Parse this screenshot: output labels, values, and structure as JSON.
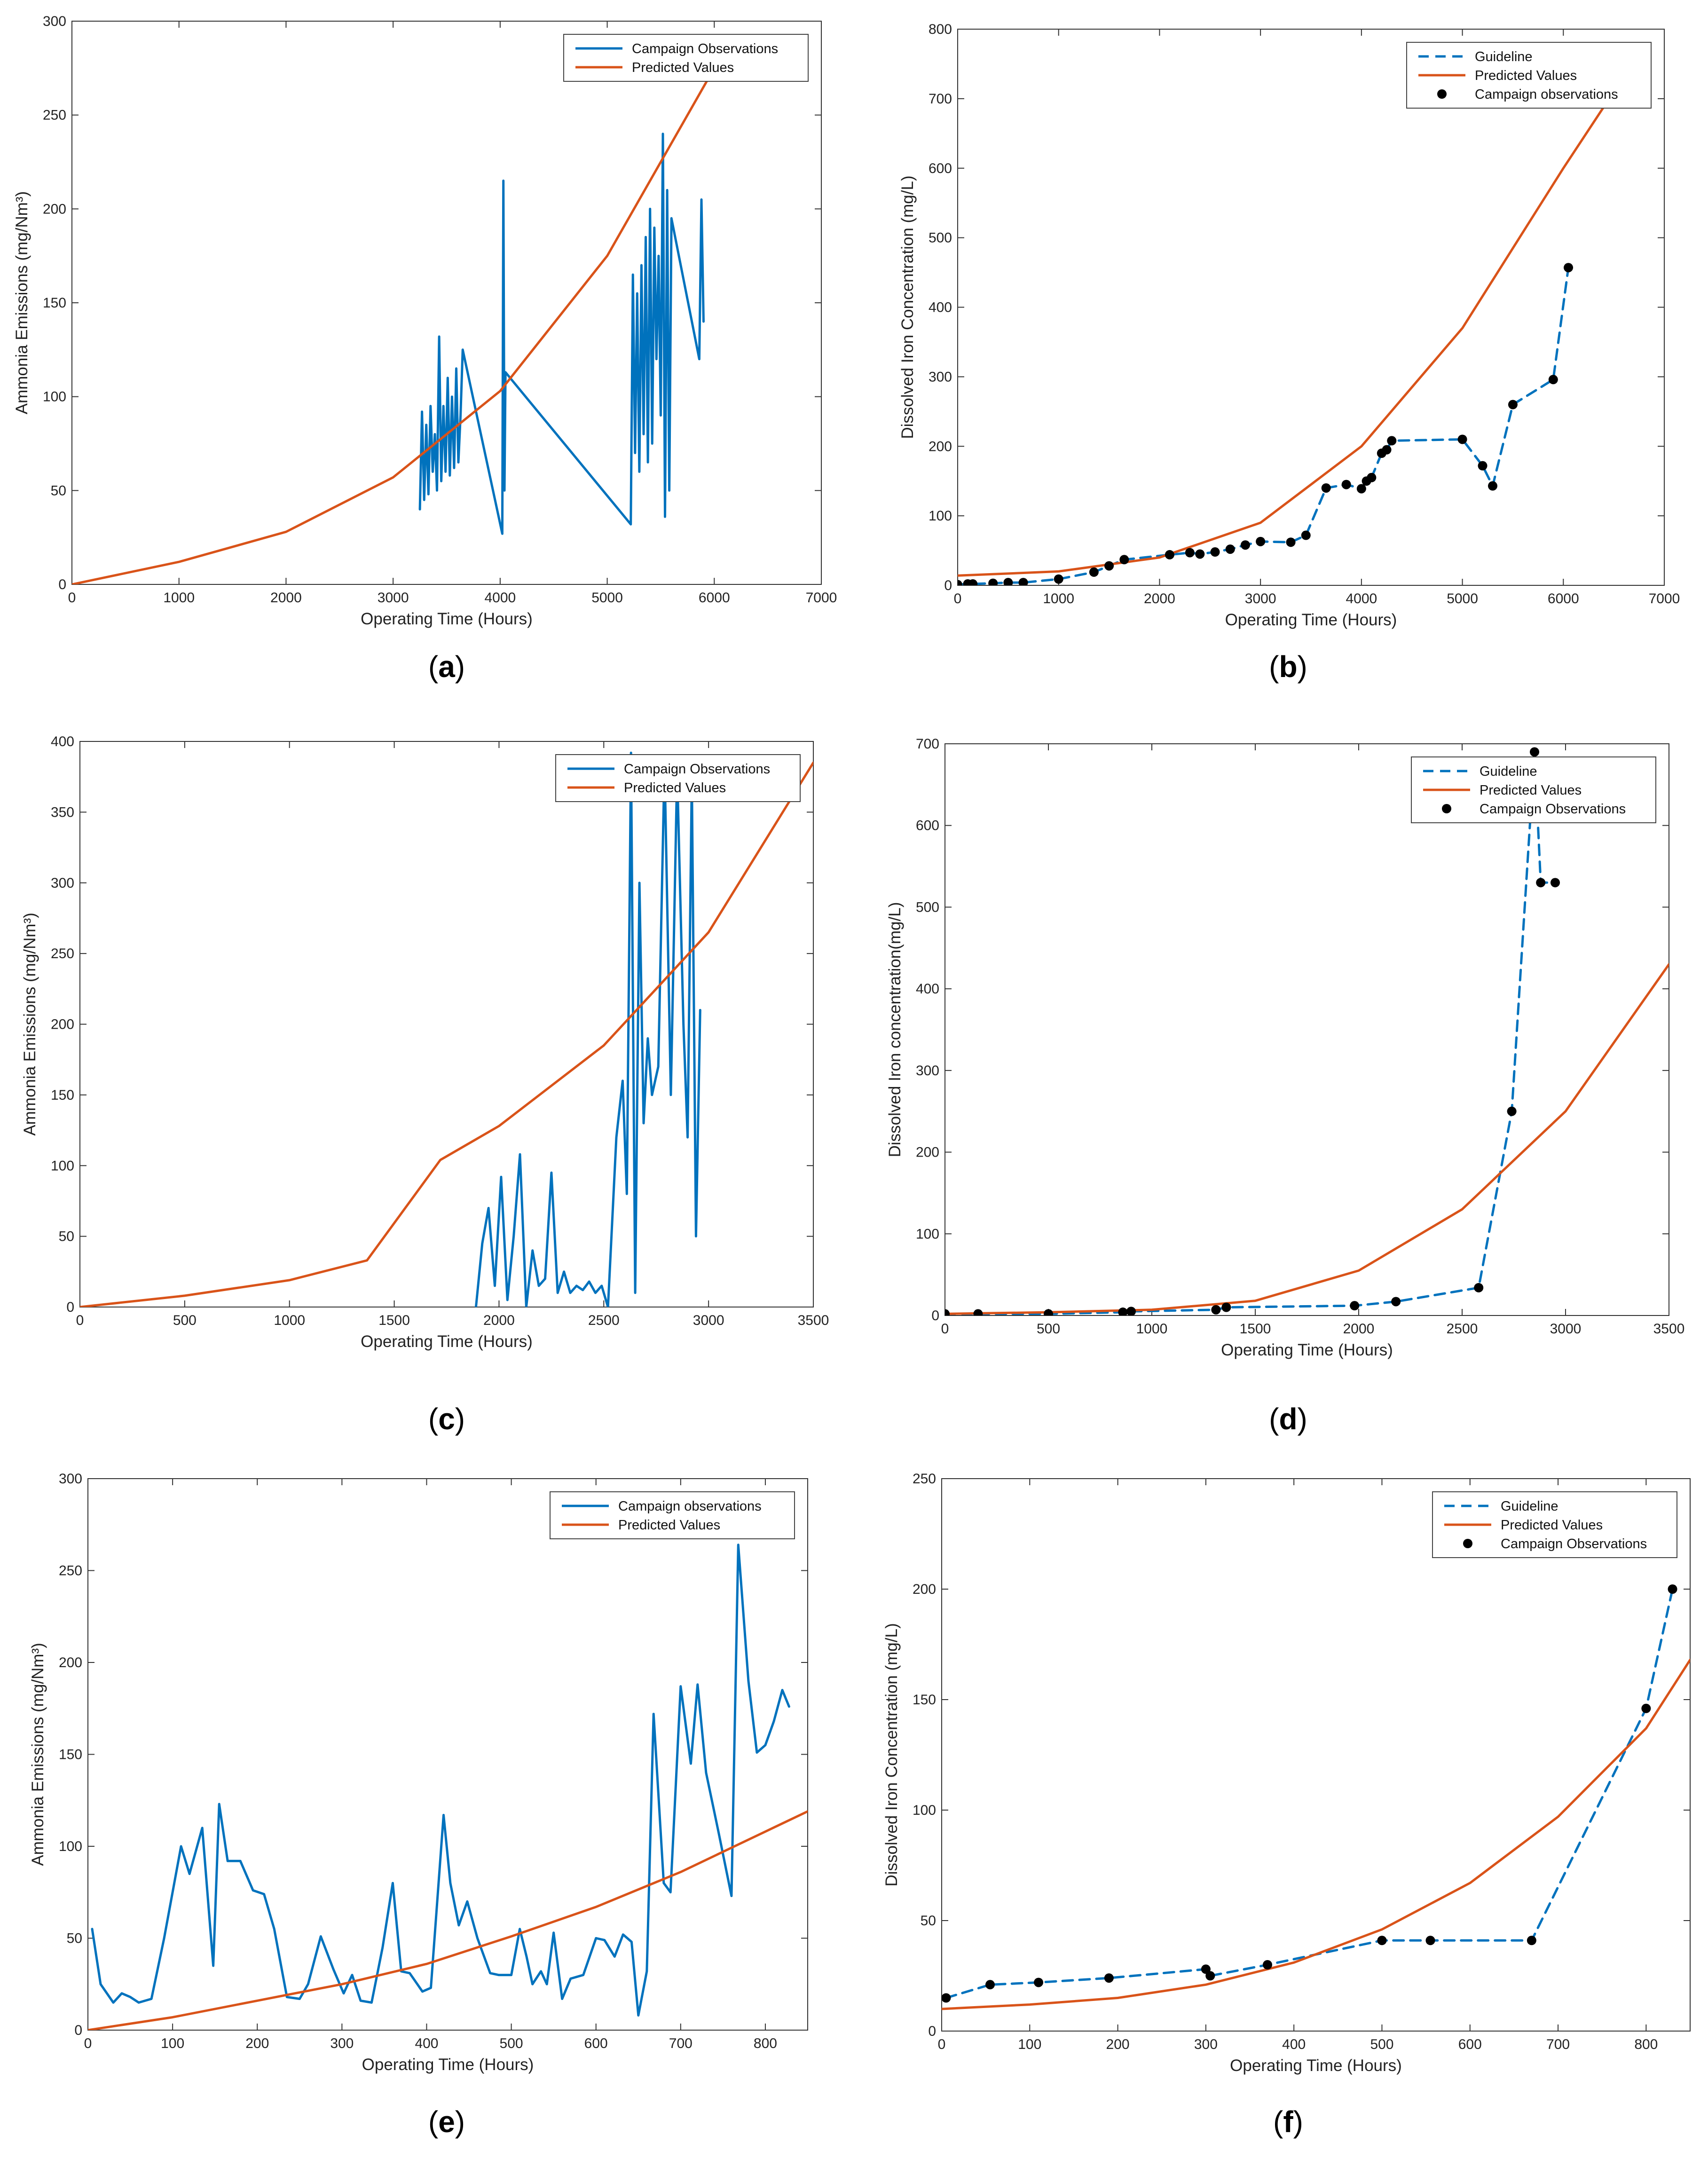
{
  "colors": {
    "observation": "#0072BD",
    "predicted": "#D95319",
    "marker": "#000000",
    "frame": "#333333"
  },
  "chart_data": [
    {
      "id": "a",
      "caption": "a",
      "type": "line",
      "xlabel": "Operating Time (Hours)",
      "ylabel": "Ammonia Emissions (mg/Nm³)",
      "xlim": [
        0,
        7000
      ],
      "ylim": [
        0,
        300
      ],
      "xticks": [
        0,
        1000,
        2000,
        3000,
        4000,
        5000,
        6000,
        7000
      ],
      "yticks": [
        0,
        50,
        100,
        150,
        200,
        250,
        300
      ],
      "legend_position": "top-right",
      "series": [
        {
          "name": "Campaign Observations",
          "style": "solid",
          "color": "#0072BD",
          "x": [
            3250,
            3270,
            3290,
            3310,
            3330,
            3350,
            3370,
            3390,
            3410,
            3430,
            3450,
            3470,
            3490,
            3510,
            3530,
            3550,
            3570,
            3590,
            3610,
            3630,
            3650,
            4020,
            4030,
            4040,
            4050,
            5220,
            5240,
            5260,
            5280,
            5300,
            5320,
            5340,
            5360,
            5380,
            5400,
            5420,
            5440,
            5460,
            5480,
            5500,
            5520,
            5540,
            5560,
            5580,
            5600,
            5860,
            5880,
            5900
          ],
          "y": [
            40,
            92,
            45,
            85,
            48,
            95,
            60,
            80,
            50,
            132,
            55,
            95,
            60,
            110,
            58,
            100,
            62,
            115,
            65,
            90,
            125,
            27,
            215,
            50,
            113,
            32,
            165,
            70,
            155,
            60,
            170,
            80,
            185,
            65,
            200,
            75,
            190,
            120,
            175,
            90,
            240,
            36,
            210,
            50,
            195,
            120,
            205,
            140
          ]
        },
        {
          "name": "Predicted Values",
          "style": "solid",
          "color": "#D95319",
          "x": [
            0,
            1000,
            2000,
            3000,
            4000,
            5000,
            6000
          ],
          "y": [
            0,
            12,
            28,
            57,
            103,
            175,
            275
          ]
        }
      ]
    },
    {
      "id": "b",
      "caption": "b",
      "type": "line",
      "xlabel": "Operating Time (Hours)",
      "ylabel": "Dissolved Iron Concentration (mg/L)",
      "xlim": [
        0,
        7000
      ],
      "ylim": [
        0,
        800
      ],
      "xticks": [
        0,
        1000,
        2000,
        3000,
        4000,
        5000,
        6000,
        7000
      ],
      "yticks": [
        0,
        100,
        200,
        300,
        400,
        500,
        600,
        700,
        800
      ],
      "legend_position": "top-right",
      "series": [
        {
          "name": "Guideline",
          "style": "dashed",
          "color": "#0072BD",
          "x": [
            0,
            100,
            150,
            350,
            500,
            650,
            1000,
            1350,
            1500,
            1650,
            2100,
            2300,
            2400,
            2550,
            2700,
            2850,
            3000,
            3300,
            3450,
            3650,
            3850,
            4000,
            4050,
            4100,
            4200,
            4250,
            4300,
            5000,
            5200,
            5300,
            5500,
            5900,
            6050
          ],
          "y": [
            1,
            2,
            2,
            3,
            4,
            4,
            9,
            19,
            28,
            37,
            44,
            47,
            45,
            48,
            52,
            58,
            63,
            62,
            72,
            140,
            145,
            139,
            150,
            155,
            190,
            195,
            208,
            210,
            172,
            143,
            260,
            296,
            457
          ]
        },
        {
          "name": "Predicted Values",
          "style": "solid",
          "color": "#D95319",
          "x": [
            0,
            1000,
            2000,
            3000,
            4000,
            5000,
            6000,
            6500
          ],
          "y": [
            14,
            20,
            40,
            90,
            200,
            370,
            600,
            710
          ]
        },
        {
          "name": "Campaign observations",
          "style": "markers",
          "color": "#000000",
          "x": [
            0,
            100,
            150,
            350,
            500,
            650,
            1000,
            1350,
            1500,
            1650,
            2100,
            2300,
            2400,
            2550,
            2700,
            2850,
            3000,
            3300,
            3450,
            3650,
            3850,
            4000,
            4050,
            4100,
            4200,
            4250,
            4300,
            5000,
            5200,
            5300,
            5500,
            5900,
            6050
          ],
          "y": [
            1,
            2,
            2,
            3,
            4,
            4,
            9,
            19,
            28,
            37,
            44,
            47,
            45,
            48,
            52,
            58,
            63,
            62,
            72,
            140,
            145,
            139,
            150,
            155,
            190,
            195,
            208,
            210,
            172,
            143,
            260,
            296,
            457
          ]
        }
      ]
    },
    {
      "id": "c",
      "caption": "c",
      "type": "line",
      "xlabel": "Operating Time (Hours)",
      "ylabel": "Ammonia Emissions (mg/Nm³)",
      "xlim": [
        0,
        3500
      ],
      "ylim": [
        0,
        400
      ],
      "xticks": [
        0,
        500,
        1000,
        1500,
        2000,
        2500,
        3000,
        3500
      ],
      "yticks": [
        0,
        50,
        100,
        150,
        200,
        250,
        300,
        350,
        400
      ],
      "legend_position": "top-right",
      "series": [
        {
          "name": "Campaign Observations",
          "style": "solid",
          "color": "#0072BD",
          "x": [
            1890,
            1920,
            1950,
            1980,
            2010,
            2040,
            2070,
            2100,
            2130,
            2160,
            2190,
            2220,
            2250,
            2280,
            2310,
            2340,
            2370,
            2400,
            2430,
            2460,
            2490,
            2520,
            2560,
            2590,
            2610,
            2630,
            2650,
            2670,
            2690,
            2710,
            2730,
            2760,
            2790,
            2820,
            2850,
            2880,
            2900,
            2920,
            2940,
            2960
          ],
          "y": [
            0,
            45,
            70,
            15,
            92,
            5,
            50,
            108,
            0,
            40,
            15,
            20,
            95,
            10,
            25,
            10,
            15,
            12,
            18,
            10,
            15,
            0,
            120,
            160,
            80,
            392,
            10,
            300,
            130,
            190,
            150,
            170,
            385,
            150,
            380,
            200,
            120,
            375,
            50,
            210
          ]
        },
        {
          "name": "Predicted Values",
          "style": "solid",
          "color": "#D95319",
          "x": [
            0,
            500,
            1000,
            1370,
            1720,
            2000,
            2500,
            3000,
            3500
          ],
          "y": [
            0,
            8,
            19,
            33,
            104,
            128,
            185,
            265,
            385
          ]
        }
      ]
    },
    {
      "id": "d",
      "caption": "d",
      "type": "line",
      "xlabel": "Operating Time (Hours)",
      "ylabel": "Dissolved Iron concentration(mg/L)",
      "xlim": [
        0,
        3500
      ],
      "ylim": [
        0,
        700
      ],
      "xticks": [
        0,
        500,
        1000,
        1500,
        2000,
        2500,
        3000,
        3500
      ],
      "yticks": [
        0,
        100,
        200,
        300,
        400,
        500,
        600,
        700
      ],
      "legend_position": "top-right",
      "series": [
        {
          "name": "Guideline",
          "style": "dashed",
          "color": "#0072BD",
          "x": [
            0,
            160,
            500,
            860,
            900,
            1310,
            1360,
            1980,
            2180,
            2580,
            2740,
            2850,
            2880,
            2950
          ],
          "y": [
            2,
            2,
            2,
            4,
            5,
            7,
            10,
            12,
            17,
            34,
            250,
            690,
            530,
            530
          ]
        },
        {
          "name": "Predicted Values",
          "style": "solid",
          "color": "#D95319",
          "x": [
            0,
            500,
            1000,
            1500,
            2000,
            2500,
            3000,
            3500
          ],
          "y": [
            2,
            4,
            7,
            18,
            55,
            130,
            250,
            430
          ]
        },
        {
          "name": "Campaign Observations",
          "style": "markers",
          "color": "#000000",
          "x": [
            0,
            160,
            500,
            860,
            900,
            1310,
            1360,
            1980,
            2180,
            2580,
            2740,
            2850,
            2880,
            2950
          ],
          "y": [
            2,
            2,
            2,
            4,
            5,
            7,
            10,
            12,
            17,
            34,
            250,
            690,
            530,
            530
          ]
        }
      ]
    },
    {
      "id": "e",
      "caption": "e",
      "type": "line",
      "xlabel": "Operating Time (Hours)",
      "ylabel": "Ammonia Emissions (mg/Nm³)",
      "xlim": [
        0,
        850
      ],
      "ylim": [
        0,
        300
      ],
      "xticks": [
        0,
        100,
        200,
        300,
        400,
        500,
        600,
        700,
        800
      ],
      "yticks": [
        0,
        50,
        100,
        150,
        200,
        250,
        300
      ],
      "legend_position": "top-right",
      "series": [
        {
          "name": "Campaign observations",
          "style": "solid",
          "color": "#0072BD",
          "x": [
            5,
            15,
            30,
            40,
            50,
            60,
            75,
            90,
            110,
            120,
            135,
            148,
            155,
            165,
            180,
            195,
            208,
            220,
            235,
            250,
            260,
            275,
            290,
            302,
            312,
            322,
            335,
            348,
            360,
            370,
            380,
            395,
            405,
            420,
            428,
            438,
            448,
            460,
            475,
            485,
            500,
            510,
            518,
            525,
            535,
            542,
            550,
            560,
            570,
            585,
            600,
            610,
            622,
            632,
            642,
            650,
            660,
            668,
            680,
            688,
            700,
            712,
            720,
            730,
            745,
            760,
            768,
            780,
            790,
            800,
            810,
            820,
            828
          ],
          "y": [
            55,
            25,
            15,
            20,
            18,
            15,
            17,
            50,
            100,
            85,
            110,
            35,
            123,
            92,
            92,
            76,
            74,
            55,
            18,
            17,
            25,
            51,
            33,
            20,
            30,
            16,
            15,
            45,
            80,
            32,
            31,
            21,
            23,
            117,
            80,
            57,
            70,
            50,
            31,
            30,
            30,
            55,
            40,
            25,
            32,
            25,
            53,
            17,
            28,
            30,
            50,
            49,
            40,
            52,
            48,
            8,
            32,
            172,
            80,
            75,
            187,
            145,
            188,
            140,
            107,
            73,
            264,
            190,
            151,
            155,
            168,
            185,
            176
          ]
        },
        {
          "name": "Predicted Values",
          "style": "solid",
          "color": "#D95319",
          "x": [
            0,
            100,
            200,
            300,
            400,
            500,
            600,
            700,
            800,
            850
          ],
          "y": [
            0,
            7,
            16,
            25,
            36,
            51,
            67,
            86,
            108,
            119
          ]
        }
      ]
    },
    {
      "id": "f",
      "caption": "f",
      "type": "line",
      "xlabel": "Operating Time (Hours)",
      "ylabel": "Dissolved Iron Concentration (mg/L)",
      "xlim": [
        0,
        850
      ],
      "ylim": [
        0,
        250
      ],
      "xticks": [
        0,
        100,
        200,
        300,
        400,
        500,
        600,
        700,
        800
      ],
      "yticks": [
        0,
        50,
        100,
        150,
        200,
        250
      ],
      "legend_position": "top-right",
      "series": [
        {
          "name": "Guideline",
          "style": "dashed",
          "color": "#0072BD",
          "x": [
            5,
            55,
            110,
            190,
            300,
            305,
            370,
            500,
            555,
            670,
            800,
            830
          ],
          "y": [
            15,
            21,
            22,
            24,
            28,
            25,
            30,
            41,
            41,
            41,
            146,
            200
          ]
        },
        {
          "name": "Predicted Values",
          "style": "solid",
          "color": "#D95319",
          "x": [
            0,
            100,
            200,
            300,
            400,
            500,
            600,
            700,
            800,
            850
          ],
          "y": [
            10,
            12,
            15,
            21,
            31,
            46,
            67,
            97,
            137,
            168
          ]
        },
        {
          "name": "Campaign Observations",
          "style": "markers",
          "color": "#000000",
          "x": [
            5,
            55,
            110,
            190,
            300,
            305,
            370,
            500,
            555,
            670,
            800,
            830
          ],
          "y": [
            15,
            21,
            22,
            24,
            28,
            25,
            30,
            41,
            41,
            41,
            146,
            200
          ]
        }
      ]
    }
  ]
}
